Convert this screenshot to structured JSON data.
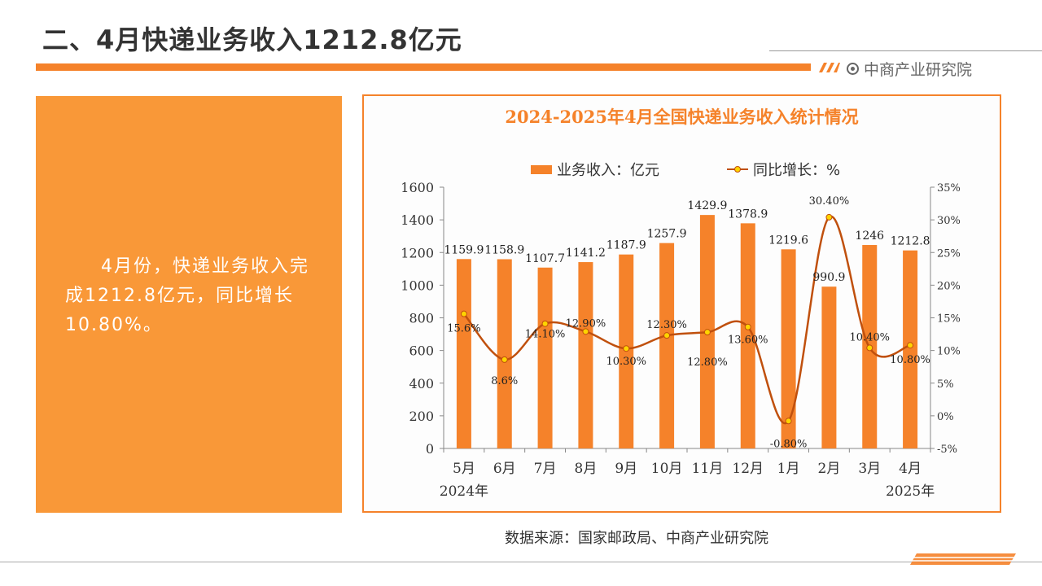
{
  "header": {
    "title": "二、4月快递业务收入1212.8亿元",
    "brand": "中商产业研究院"
  },
  "summary": {
    "text": "4月份，快递业务收入完成1212.8亿元，同比增长10.80%。"
  },
  "source": "数据来源：国家邮政局、中商产业研究院",
  "colors": {
    "accent": "#f5822a",
    "box": "#f99838",
    "line": "#c0500d",
    "marker": "#ffd400"
  },
  "chart_data": {
    "type": "bar",
    "title": "2024-2025年4月全国快递业务收入统计情况",
    "categories": [
      "5月",
      "6月",
      "7月",
      "8月",
      "9月",
      "10月",
      "11月",
      "12月",
      "1月",
      "2月",
      "3月",
      "4月"
    ],
    "year_labels": {
      "start": "2024年",
      "end": "2025年"
    },
    "series": [
      {
        "name": "业务收入：亿元",
        "type": "bar",
        "axis": "left",
        "values": [
          1159.9,
          1158.9,
          1107.7,
          1141.2,
          1187.9,
          1257.9,
          1429.9,
          1378.9,
          1219.6,
          990.9,
          1246,
          1212.8
        ],
        "labels": [
          "1159.9",
          "1158.9",
          "1107.7",
          "1141.2",
          "1187.9",
          "1257.9",
          "1429.9",
          "1378.9",
          "1219.6",
          "990.9",
          "1246",
          "1212.8"
        ]
      },
      {
        "name": "同比增长：%",
        "type": "line",
        "axis": "right",
        "values": [
          15.6,
          8.6,
          14.1,
          12.9,
          10.3,
          12.3,
          12.8,
          13.6,
          -0.8,
          30.4,
          10.4,
          10.8
        ],
        "labels": [
          "15.6%",
          "8.6%",
          "14.10%",
          "12.90%",
          "10.30%",
          "12.30%",
          "12.80%",
          "13.60%",
          "-0.80%",
          "30.40%",
          "10.40%",
          "10.80%"
        ]
      }
    ],
    "ylim": [
      0,
      1600
    ],
    "yticks": [
      0,
      200,
      400,
      600,
      800,
      1000,
      1200,
      1400,
      1600
    ],
    "y2lim": [
      -5,
      35
    ],
    "y2ticks": [
      "-5%",
      "0%",
      "5%",
      "10%",
      "15%",
      "20%",
      "25%",
      "30%",
      "35%"
    ],
    "legend": "top-center",
    "grid": false
  }
}
